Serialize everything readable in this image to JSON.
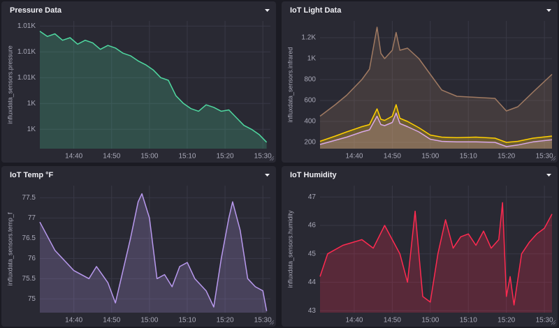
{
  "chart_data": [
    {
      "type": "line",
      "title": "Pressure Data",
      "y_label": "influxdata_sensors.pressure",
      "x": [
        "14:31",
        "14:33",
        "14:35",
        "14:37",
        "14:39",
        "14:41",
        "14:43",
        "14:45",
        "14:47",
        "14:49",
        "14:51",
        "14:53",
        "14:55",
        "14:57",
        "14:59",
        "15:01",
        "15:03",
        "15:05",
        "15:07",
        "15:09",
        "15:11",
        "15:13",
        "15:15",
        "15:17",
        "15:19",
        "15:21",
        "15:23",
        "15:25",
        "15:27",
        "15:29",
        "15:31"
      ],
      "series": [
        {
          "color": "#4fd8a0",
          "values": [
            1009.6,
            1009.2,
            1009.4,
            1008.9,
            1009.1,
            1008.6,
            1008.9,
            1008.7,
            1008.2,
            1008.5,
            1008.3,
            1007.9,
            1007.7,
            1007.3,
            1007.0,
            1006.6,
            1006.0,
            1005.8,
            1004.6,
            1004.0,
            1003.6,
            1003.4,
            1003.9,
            1003.7,
            1003.4,
            1003.5,
            1002.9,
            1002.3,
            1002.0,
            1001.6,
            1001.0
          ]
        }
      ],
      "xlim": [
        "14:31",
        "15:32"
      ],
      "xticks": [
        "14:40",
        "14:50",
        "15:00",
        "15:10",
        "15:20",
        "15:30"
      ],
      "ylim": [
        1000.5,
        1010.4
      ],
      "yticks": [
        {
          "value": 1010,
          "label": "1.01K"
        },
        {
          "value": 1008,
          "label": "1.01K"
        },
        {
          "value": 1006,
          "label": "1.01K"
        },
        {
          "value": 1004,
          "label": "1K"
        },
        {
          "value": 1002,
          "label": "1K"
        }
      ],
      "grid": true
    },
    {
      "type": "line",
      "title": "IoT Light Data",
      "y_label": "influxdata_sensors.infrared",
      "x": [
        "14:31",
        "14:35",
        "14:38",
        "14:42",
        "14:44",
        "14:46",
        "14:47",
        "14:48",
        "14:50",
        "14:51",
        "14:52",
        "14:54",
        "14:57",
        "15:00",
        "15:03",
        "15:07",
        "15:12",
        "15:17",
        "15:20",
        "15:23",
        "15:27",
        "15:32"
      ],
      "series": [
        {
          "color": "#a07a62",
          "values": [
            450,
            560,
            650,
            800,
            900,
            1300,
            1050,
            1000,
            1080,
            1250,
            1080,
            1100,
            1000,
            850,
            700,
            640,
            630,
            620,
            500,
            540,
            680,
            850
          ]
        },
        {
          "color": "#ffd000",
          "values": [
            210,
            260,
            300,
            350,
            370,
            520,
            420,
            410,
            450,
            560,
            430,
            400,
            340,
            270,
            250,
            245,
            250,
            240,
            200,
            210,
            240,
            260
          ]
        },
        {
          "color": "#d8a8e8",
          "values": [
            180,
            220,
            250,
            300,
            320,
            450,
            370,
            360,
            390,
            480,
            380,
            350,
            300,
            230,
            210,
            205,
            205,
            200,
            160,
            175,
            205,
            225
          ]
        }
      ],
      "xlim": [
        "14:31",
        "15:32"
      ],
      "xticks": [
        "14:40",
        "14:50",
        "15:00",
        "15:10",
        "15:20",
        "15:30"
      ],
      "ylim": [
        140,
        1360
      ],
      "yticks": [
        200,
        400,
        600,
        800,
        {
          "value": 1000,
          "label": "1K"
        },
        {
          "value": 1200,
          "label": "1.2K"
        }
      ],
      "grid": true
    },
    {
      "type": "line",
      "title": "IoT Temp °F",
      "y_label": "influxdata_sensors.temp_f",
      "x": [
        "14:31",
        "14:35",
        "14:40",
        "14:44",
        "14:46",
        "14:49",
        "14:51",
        "14:55",
        "14:57",
        "14:58",
        "15:00",
        "15:02",
        "15:04",
        "15:06",
        "15:08",
        "15:10",
        "15:12",
        "15:15",
        "15:17",
        "15:19",
        "15:21",
        "15:22",
        "15:24",
        "15:26",
        "15:28",
        "15:30",
        "15:31"
      ],
      "series": [
        {
          "color": "#b899ee",
          "values": [
            76.9,
            76.2,
            75.7,
            75.5,
            75.8,
            75.4,
            74.9,
            76.5,
            77.4,
            77.6,
            77.0,
            75.5,
            75.6,
            75.3,
            75.8,
            75.9,
            75.5,
            75.2,
            74.8,
            76.0,
            77.0,
            77.4,
            76.7,
            75.5,
            75.3,
            75.2,
            74.7
          ]
        }
      ],
      "xlim": [
        "14:31",
        "15:32"
      ],
      "xticks": [
        "14:40",
        "14:50",
        "15:00",
        "15:10",
        "15:20",
        "15:30"
      ],
      "ylim": [
        74.66,
        77.8
      ],
      "yticks": [
        75,
        75.5,
        76,
        76.5,
        77,
        77.5
      ],
      "grid": true
    },
    {
      "type": "line",
      "title": "IoT Humidity",
      "y_label": "influxdata_sensors.humidity",
      "x": [
        "14:31",
        "14:33",
        "14:37",
        "14:42",
        "14:45",
        "14:48",
        "14:50",
        "14:52",
        "14:54",
        "14:56",
        "14:57",
        "14:58",
        "15:00",
        "15:02",
        "15:04",
        "15:06",
        "15:08",
        "15:10",
        "15:12",
        "15:14",
        "15:16",
        "15:18",
        "15:19",
        "15:20",
        "15:21",
        "15:22",
        "15:24",
        "15:26",
        "15:28",
        "15:30",
        "15:32"
      ],
      "series": [
        {
          "color": "#ff2a50",
          "values": [
            44.2,
            45.0,
            45.3,
            45.5,
            45.2,
            46.0,
            45.5,
            45.0,
            44.0,
            46.5,
            45.0,
            43.5,
            43.3,
            45.0,
            46.2,
            45.2,
            45.6,
            45.7,
            45.3,
            45.8,
            45.2,
            45.5,
            46.8,
            43.5,
            44.2,
            43.2,
            45.0,
            45.4,
            45.7,
            45.9,
            46.4
          ]
        }
      ],
      "xlim": [
        "14:31",
        "15:32"
      ],
      "xticks": [
        "14:40",
        "14:50",
        "15:00",
        "15:10",
        "15:20",
        "15:30"
      ],
      "ylim": [
        42.93,
        47.4
      ],
      "yticks": [
        43,
        44,
        45,
        46,
        47
      ],
      "grid": true
    }
  ]
}
